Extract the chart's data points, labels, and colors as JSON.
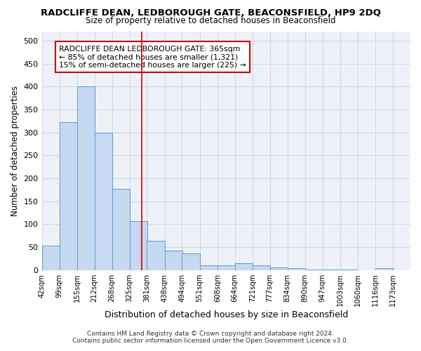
{
  "title1": "RADCLIFFE DEAN, LEDBOROUGH GATE, BEACONSFIELD, HP9 2DQ",
  "title2": "Size of property relative to detached houses in Beaconsfield",
  "xlabel": "Distribution of detached houses by size in Beaconsfield",
  "ylabel": "Number of detached properties",
  "footer1": "Contains HM Land Registry data © Crown copyright and database right 2024.",
  "footer2": "Contains public sector information licensed under the Open Government Licence v3.0.",
  "annotation_line1": "RADCLIFFE DEAN LEDBOROUGH GATE: 365sqm",
  "annotation_line2": "← 85% of detached houses are smaller (1,321)",
  "annotation_line3": "15% of semi-detached houses are larger (225) →",
  "property_sqm": 365,
  "bar_color": "#c6d9f0",
  "bar_edge_color": "#5b9bd5",
  "vline_color": "#cc0000",
  "annotation_box_edge": "#cc0000",
  "grid_color": "#d0d8e8",
  "bg_color": "#eef2f8",
  "tick_labels": [
    "42sqm",
    "99sqm",
    "155sqm",
    "212sqm",
    "268sqm",
    "325sqm",
    "381sqm",
    "438sqm",
    "494sqm",
    "551sqm",
    "608sqm",
    "664sqm",
    "721sqm",
    "777sqm",
    "834sqm",
    "890sqm",
    "947sqm",
    "1003sqm",
    "1060sqm",
    "1116sqm",
    "1173sqm"
  ],
  "values": [
    53,
    322,
    401,
    299,
    178,
    107,
    64,
    42,
    36,
    11,
    11,
    15,
    10,
    6,
    4,
    2,
    1,
    1,
    0,
    5
  ],
  "bin_edges": [
    42,
    99,
    155,
    212,
    268,
    325,
    381,
    438,
    494,
    551,
    608,
    664,
    721,
    777,
    834,
    890,
    947,
    1003,
    1060,
    1116,
    1173
  ],
  "ylim": [
    0,
    520
  ],
  "yticks": [
    0,
    50,
    100,
    150,
    200,
    250,
    300,
    350,
    400,
    450,
    500
  ]
}
